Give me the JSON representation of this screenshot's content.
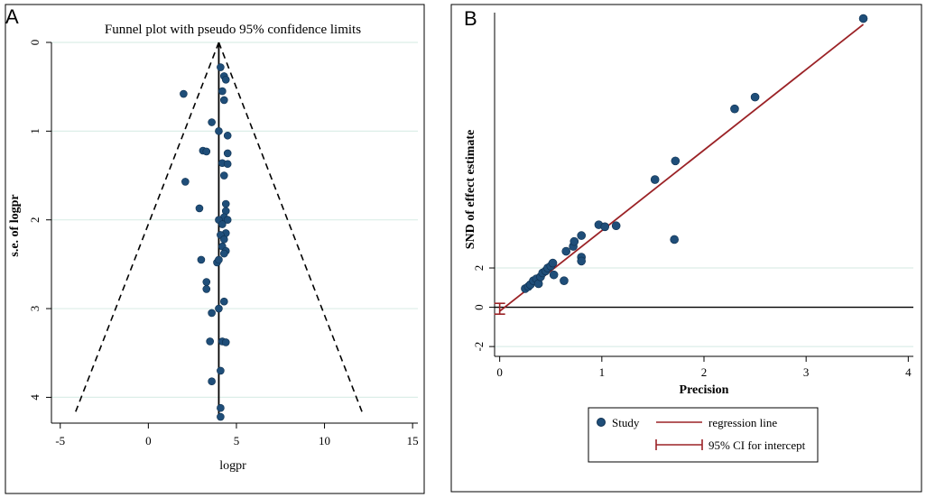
{
  "panel_a": {
    "letter": "A",
    "chart_data": {
      "type": "scatter",
      "title": "Funnel plot with pseudo 95% confidence limits",
      "xlabel": "logpr",
      "ylabel": "s.e. of logpr",
      "xlim": [
        -5.5,
        15.3
      ],
      "ylim": [
        0,
        4.25
      ],
      "y_reversed": true,
      "xticks": [
        "-5",
        "0",
        "5",
        "10",
        "15"
      ],
      "xtick_values": [
        -5,
        0,
        5,
        10,
        15
      ],
      "yticks": [
        "0",
        "1",
        "2",
        "3",
        "4"
      ],
      "ytick_values": [
        0,
        1,
        2,
        3,
        4
      ],
      "pooled_estimate": 4.0,
      "funnel_limits": {
        "apex": [
          4.0,
          0
        ],
        "left_base": [
          -4.2,
          4.2
        ],
        "right_base": [
          12.2,
          4.2
        ]
      },
      "points": [
        [
          4.1,
          0.28
        ],
        [
          4.3,
          0.38
        ],
        [
          4.4,
          0.42
        ],
        [
          2.0,
          0.58
        ],
        [
          4.2,
          0.55
        ],
        [
          4.3,
          0.65
        ],
        [
          3.6,
          0.9
        ],
        [
          4.0,
          1.0
        ],
        [
          4.5,
          1.05
        ],
        [
          3.1,
          1.22
        ],
        [
          3.3,
          1.23
        ],
        [
          4.5,
          1.25
        ],
        [
          4.2,
          1.36
        ],
        [
          4.5,
          1.37
        ],
        [
          4.3,
          1.5
        ],
        [
          2.1,
          1.57
        ],
        [
          4.4,
          1.82
        ],
        [
          2.9,
          1.87
        ],
        [
          4.4,
          1.9
        ],
        [
          4.3,
          1.97
        ],
        [
          4.0,
          2.0
        ],
        [
          4.5,
          2.0
        ],
        [
          4.2,
          2.05
        ],
        [
          4.4,
          2.15
        ],
        [
          4.1,
          2.17
        ],
        [
          4.3,
          2.22
        ],
        [
          4.2,
          2.3
        ],
        [
          4.4,
          2.35
        ],
        [
          4.3,
          2.38
        ],
        [
          3.0,
          2.45
        ],
        [
          3.9,
          2.48
        ],
        [
          4.0,
          2.45
        ],
        [
          3.3,
          2.7
        ],
        [
          3.3,
          2.78
        ],
        [
          4.3,
          2.92
        ],
        [
          3.6,
          3.05
        ],
        [
          4.0,
          3.0
        ],
        [
          3.5,
          3.37
        ],
        [
          4.2,
          3.37
        ],
        [
          4.4,
          3.38
        ],
        [
          4.1,
          3.7
        ],
        [
          3.6,
          3.82
        ],
        [
          4.1,
          4.12
        ],
        [
          4.1,
          4.22
        ]
      ]
    }
  },
  "panel_b": {
    "letter": "B",
    "chart_data": {
      "type": "scatter",
      "xlabel": "Precision",
      "ylabel": "SND of effect estimate",
      "xlim": [
        -0.05,
        4.05
      ],
      "ylim": [
        -2.5,
        15
      ],
      "xticks": [
        "0",
        "1",
        "2",
        "3",
        "4"
      ],
      "xtick_values": [
        0,
        1,
        2,
        3,
        4
      ],
      "yticks": [
        "-2",
        "0",
        "2"
      ],
      "ytick_values": [
        -2,
        0,
        2
      ],
      "regression_line": {
        "x": [
          0,
          3.56
        ],
        "y": [
          -0.2,
          14.4
        ]
      },
      "ci_intercept": [
        -0.35,
        0.2
      ],
      "points": [
        [
          0.25,
          0.95
        ],
        [
          0.28,
          1.05
        ],
        [
          0.3,
          1.15
        ],
        [
          0.33,
          1.35
        ],
        [
          0.36,
          1.45
        ],
        [
          0.38,
          1.2
        ],
        [
          0.4,
          1.55
        ],
        [
          0.42,
          1.75
        ],
        [
          0.45,
          1.85
        ],
        [
          0.47,
          2.0
        ],
        [
          0.5,
          2.1
        ],
        [
          0.52,
          2.25
        ],
        [
          0.53,
          1.65
        ],
        [
          0.63,
          1.35
        ],
        [
          0.65,
          2.85
        ],
        [
          0.72,
          3.1
        ],
        [
          0.73,
          3.35
        ],
        [
          0.8,
          3.65
        ],
        [
          0.8,
          2.55
        ],
        [
          0.8,
          2.35
        ],
        [
          0.97,
          4.2
        ],
        [
          1.03,
          4.1
        ],
        [
          1.14,
          4.15
        ],
        [
          1.52,
          6.5
        ],
        [
          1.71,
          3.45
        ],
        [
          1.72,
          7.45
        ],
        [
          2.3,
          10.1
        ],
        [
          2.5,
          10.7
        ],
        [
          3.56,
          14.7
        ]
      ],
      "legend": {
        "study": "Study",
        "line": "regression line",
        "ci": "95% CI for intercept"
      }
    }
  },
  "colors": {
    "point": "#1f4e79",
    "point_edge": "#0d2f4f",
    "regression": "#9b2226",
    "grid": "#dceee8",
    "axis": "#000000"
  }
}
